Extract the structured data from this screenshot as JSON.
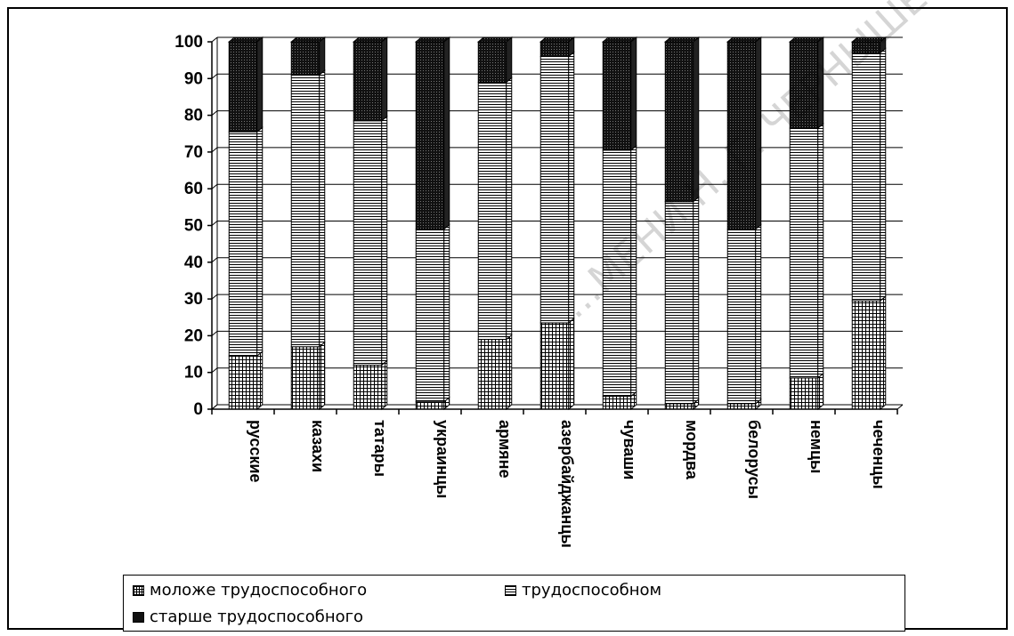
{
  "chart_data": {
    "type": "bar",
    "stacked": true,
    "three_d": true,
    "categories": [
      "русские",
      "казахи",
      "татары",
      "украинцы",
      "армяне",
      "азербайджанцы",
      "чуваши",
      "мордва",
      "белорусы",
      "немцы",
      "чеченцы"
    ],
    "series": [
      {
        "name": "моложе трудоспособного",
        "values": [
          14.5,
          17,
          12,
          2,
          19,
          23.5,
          3.5,
          1.5,
          1.5,
          8.5,
          29.5
        ],
        "pattern": "grid"
      },
      {
        "name": "трудоспособном",
        "values": [
          61,
          74,
          66.5,
          47,
          70,
          72.5,
          67,
          55,
          47.5,
          68,
          67.5
        ],
        "pattern": "horizontal-lines"
      },
      {
        "name": "старше трудоспособного",
        "values": [
          24.5,
          9,
          21.5,
          51,
          11,
          4,
          29.5,
          43.5,
          51,
          23.5,
          3
        ],
        "pattern": "dark"
      }
    ],
    "ylim": [
      0,
      100
    ],
    "yticks": [
      "0",
      "10",
      "20",
      "30",
      "40",
      "50",
      "60",
      "70",
      "80",
      "90",
      "100"
    ],
    "grid": true,
    "legend_position": "bottom",
    "title": "",
    "xlabel": "",
    "ylabel": ""
  },
  "watermark": "...МЕНИ Н. Г. ЧЕРНЫШЕВСКОГО"
}
